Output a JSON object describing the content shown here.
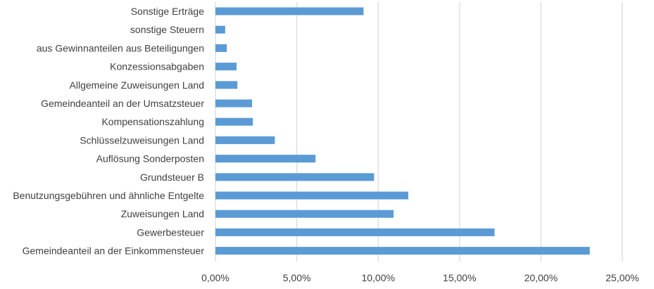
{
  "chart_data": {
    "type": "bar",
    "orientation": "horizontal",
    "categories": [
      "Sonstige Erträge",
      "sonstige Steuern",
      "aus Gewinnanteilen aus Beteiligungen",
      "Konzessionsabgaben",
      "Allgemeine Zuweisungen Land",
      "Gemeindeanteil an der Umsatzsteuer",
      "Kompensationszahlung",
      "Schlüsselzuweisungen Land",
      "Auflösung Sonderposten",
      "Grundsteuer B",
      "Benutzungsgebühren und ähnliche Entgelte",
      "Zuweisungen Land",
      "Gewerbesteuer",
      "Gemeindeanteil an der Einkommensteuer"
    ],
    "values": [
      9.1,
      0.6,
      0.7,
      1.3,
      1.35,
      2.25,
      2.3,
      3.65,
      6.15,
      9.75,
      11.85,
      10.95,
      17.15,
      23.0
    ],
    "unit": "%",
    "xlim": [
      0,
      25
    ],
    "xticks": [
      0,
      5,
      10,
      15,
      20,
      25
    ],
    "xtick_labels": [
      "0,00%",
      "5,00%",
      "10,00%",
      "15,00%",
      "20,00%",
      "25,00%"
    ],
    "title": "",
    "xlabel": "",
    "ylabel": "",
    "grid": "vertical",
    "legend": "none",
    "bar_color": "#5b9bd5",
    "grid_color": "#d9d9d9"
  }
}
